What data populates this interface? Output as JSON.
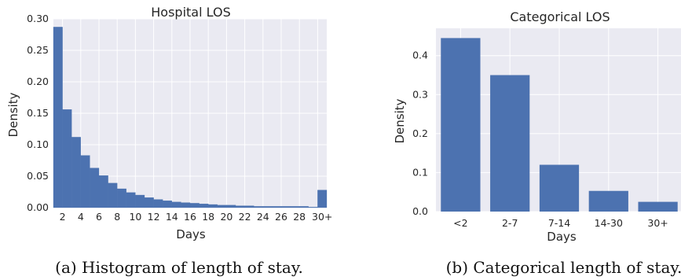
{
  "captions": [
    "(a) Histogram of length of stay.",
    "(b) Categorical length of stay."
  ],
  "chart_data": [
    {
      "type": "bar",
      "title": "Hospital LOS",
      "xlabel": "Days",
      "ylabel": "Density",
      "ylim": [
        0,
        0.3
      ],
      "yticks": [
        "0.00",
        "0.05",
        "0.10",
        "0.15",
        "0.20",
        "0.25",
        "0.30"
      ],
      "xticks": [
        "2",
        "4",
        "6",
        "8",
        "10",
        "12",
        "14",
        "16",
        "18",
        "20",
        "22",
        "24",
        "26",
        "28",
        "30+"
      ],
      "grid": true,
      "bar_color": "#4c72b0",
      "bins_start": 1,
      "values": [
        0.287,
        0.156,
        0.112,
        0.083,
        0.063,
        0.051,
        0.039,
        0.03,
        0.024,
        0.02,
        0.016,
        0.013,
        0.011,
        0.009,
        0.008,
        0.007,
        0.006,
        0.005,
        0.004,
        0.004,
        0.003,
        0.003,
        0.002,
        0.002,
        0.002,
        0.002,
        0.002,
        0.002,
        0.001,
        0.028
      ]
    },
    {
      "type": "bar",
      "title": "Categorical LOS",
      "xlabel": "Days",
      "ylabel": "Density",
      "ylim": [
        0,
        0.47
      ],
      "yticks": [
        "0.0",
        "0.1",
        "0.2",
        "0.3",
        "0.4"
      ],
      "categories": [
        "<2",
        "2-7",
        "7-14",
        "14-30",
        "30+"
      ],
      "values": [
        0.445,
        0.35,
        0.12,
        0.053,
        0.025
      ],
      "grid": true,
      "bar_color": "#4c72b0"
    }
  ]
}
